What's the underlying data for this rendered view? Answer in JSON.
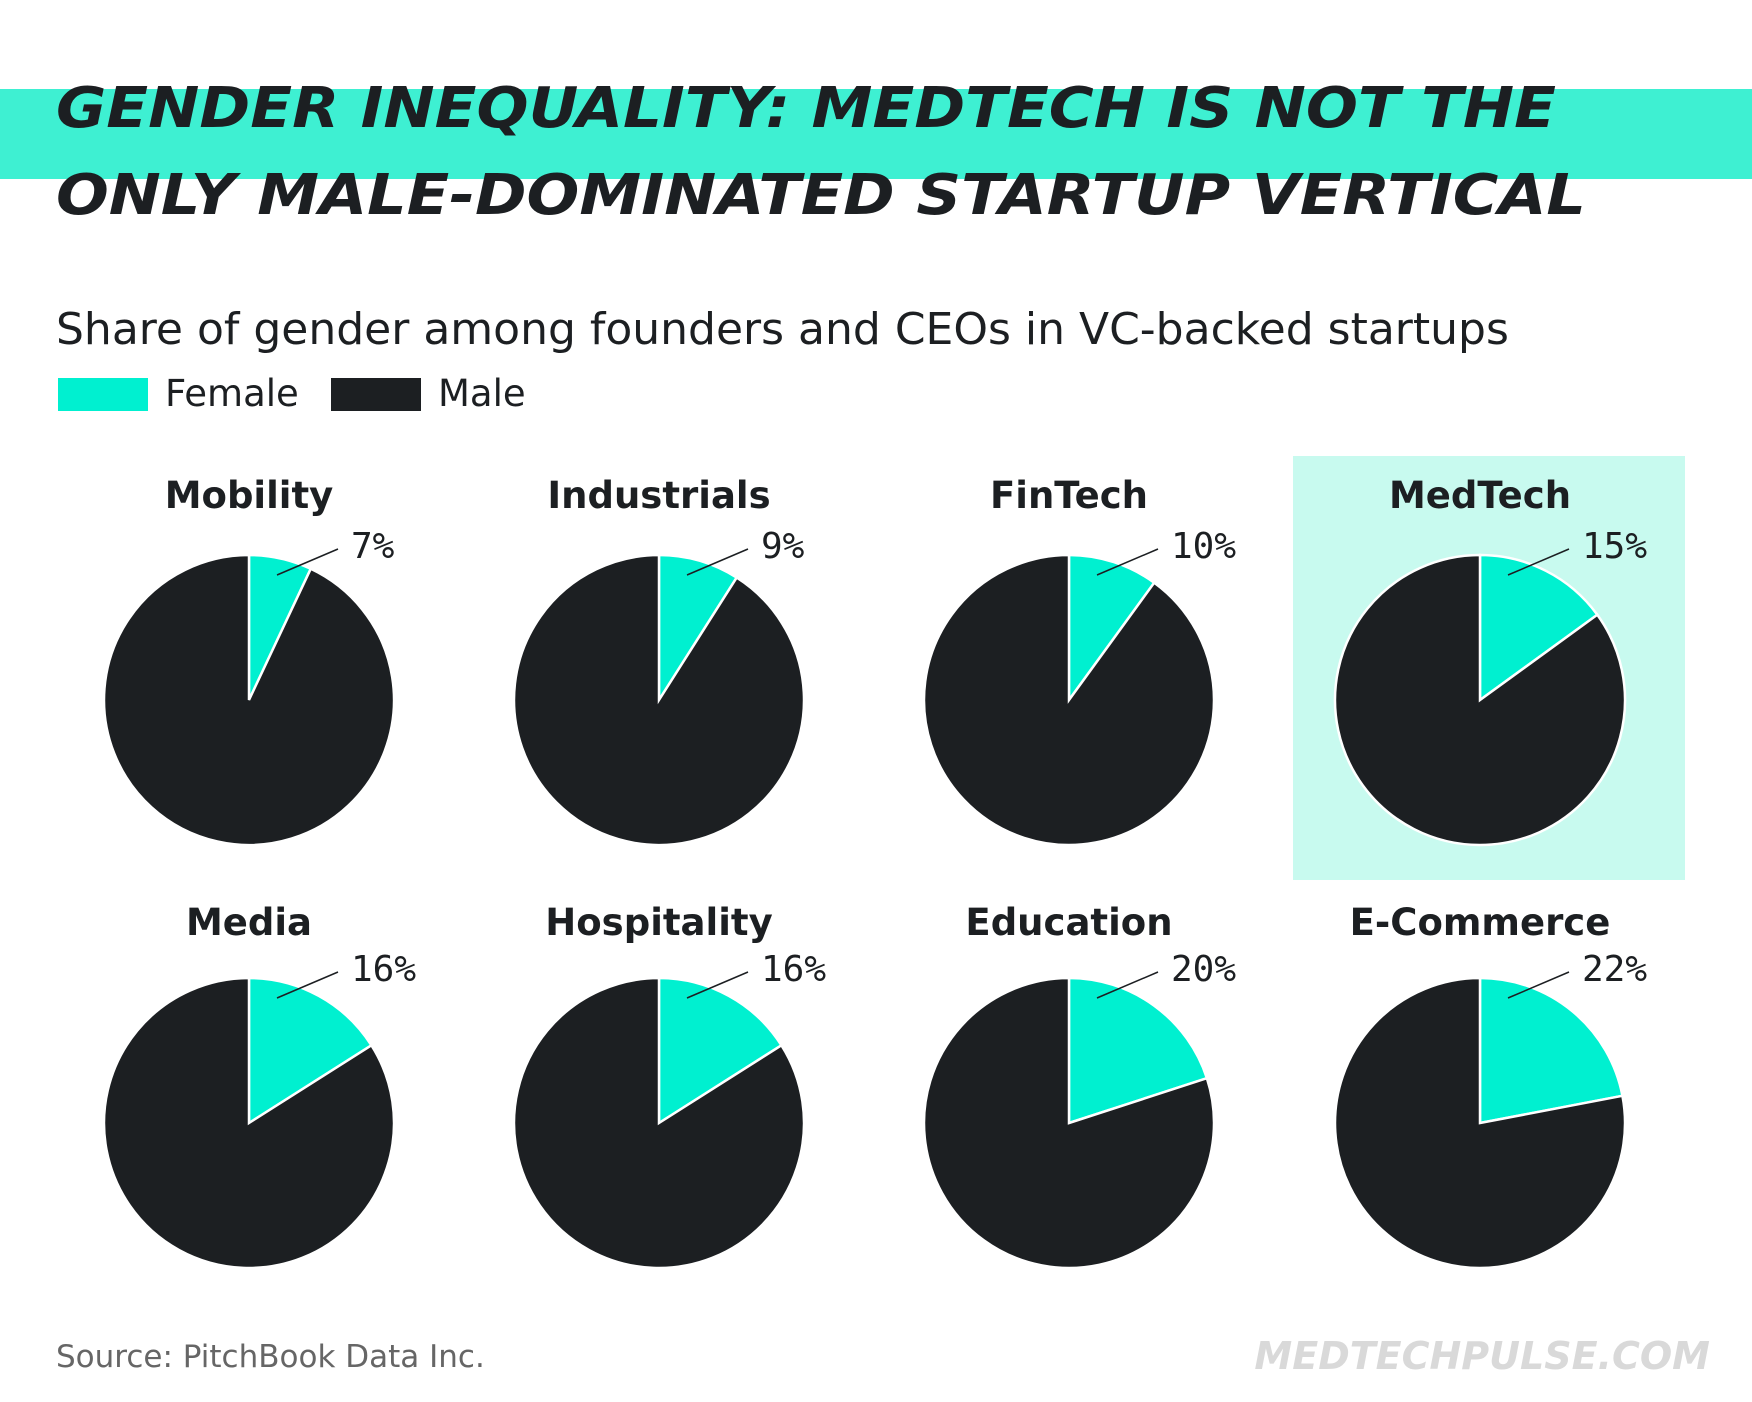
{
  "chart_data": {
    "type": "pie",
    "title": [
      "GENDER INEQUALITY: MEDTECH IS NOT THE",
      "ONLY MALE-DOMINATED STARTUP VERTICAL"
    ],
    "subtitle": "Share of gender among founders and CEOs in VC-backed startups",
    "categories": [
      "Mobility",
      "Industrials",
      "FinTech",
      "MedTech",
      "Media",
      "Hospitality",
      "Education",
      "E-Commerce"
    ],
    "series": [
      {
        "name": "Female",
        "color": "#00f0d0",
        "values": [
          7,
          9,
          10,
          15,
          16,
          16,
          20,
          22
        ],
        "value_labels": [
          "7%",
          "9%",
          "10%",
          "15%",
          "16%",
          "16%",
          "20%",
          "22%"
        ]
      },
      {
        "name": "Male",
        "color": "#1c1f22",
        "values": [
          93,
          91,
          90,
          85,
          84,
          84,
          80,
          78
        ]
      }
    ],
    "highlight": 3,
    "highlight_color": "#c8faef",
    "source": "Source: PitchBook Data Inc.",
    "brand": "MEDTECHPULSE.COM"
  }
}
